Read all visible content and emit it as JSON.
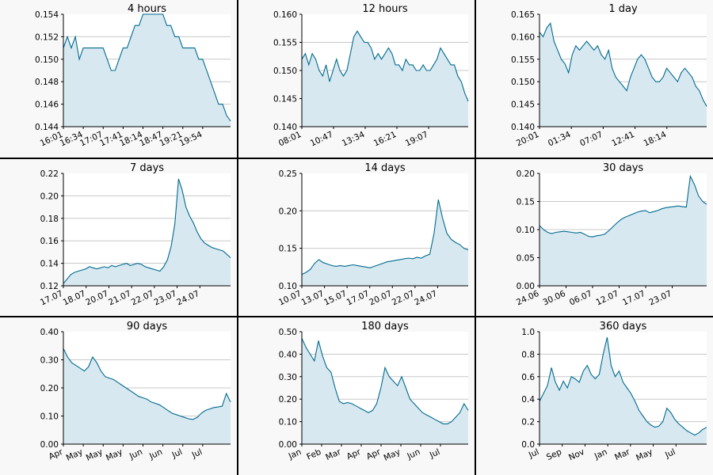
{
  "chart_data": [
    {
      "type": "area",
      "title": "4 hours",
      "ylim": [
        0.144,
        0.154
      ],
      "yticks": [
        "0.154",
        "0.152",
        "0.150",
        "0.148",
        "0.146",
        "0.144"
      ],
      "xticks": [
        "16:01",
        "16:34",
        "17:07",
        "17:41",
        "18:14",
        "18:47",
        "19:21",
        "19:54"
      ],
      "grid": "horizontal",
      "colors": {
        "line": "#006b8f",
        "fill": "#d8e8f0"
      },
      "y": [
        0.151,
        0.152,
        0.151,
        0.152,
        0.15,
        0.151,
        0.151,
        0.151,
        0.151,
        0.151,
        0.151,
        0.15,
        0.149,
        0.149,
        0.15,
        0.151,
        0.151,
        0.152,
        0.153,
        0.153,
        0.154,
        0.154,
        0.154,
        0.154,
        0.154,
        0.154,
        0.153,
        0.153,
        0.152,
        0.152,
        0.151,
        0.151,
        0.151,
        0.151,
        0.15,
        0.15,
        0.149,
        0.148,
        0.147,
        0.146,
        0.146,
        0.145,
        0.1445
      ]
    },
    {
      "type": "area",
      "title": "12 hours",
      "ylim": [
        0.14,
        0.16
      ],
      "yticks": [
        "0.160",
        "0.155",
        "0.150",
        "0.145",
        "0.140"
      ],
      "xticks": [
        "08:01",
        "10:47",
        "13:34",
        "16:21",
        "19:07"
      ],
      "grid": "horizontal",
      "colors": {
        "line": "#006b8f",
        "fill": "#d8e8f0"
      },
      "y": [
        0.152,
        0.153,
        0.151,
        0.153,
        0.152,
        0.15,
        0.149,
        0.151,
        0.148,
        0.15,
        0.152,
        0.15,
        0.149,
        0.15,
        0.153,
        0.156,
        0.157,
        0.156,
        0.155,
        0.155,
        0.154,
        0.152,
        0.153,
        0.152,
        0.153,
        0.154,
        0.153,
        0.151,
        0.151,
        0.15,
        0.152,
        0.151,
        0.151,
        0.15,
        0.15,
        0.151,
        0.15,
        0.15,
        0.151,
        0.152,
        0.154,
        0.153,
        0.152,
        0.151,
        0.151,
        0.149,
        0.148,
        0.146,
        0.1445
      ]
    },
    {
      "type": "area",
      "title": "1 day",
      "ylim": [
        0.14,
        0.165
      ],
      "yticks": [
        "0.165",
        "0.160",
        "0.155",
        "0.150",
        "0.145",
        "0.140"
      ],
      "xticks": [
        "20:01",
        "01:34",
        "07:07",
        "12:41",
        "18:14"
      ],
      "grid": "horizontal",
      "colors": {
        "line": "#006b8f",
        "fill": "#d8e8f0"
      },
      "y": [
        0.161,
        0.16,
        0.162,
        0.163,
        0.159,
        0.157,
        0.155,
        0.154,
        0.152,
        0.156,
        0.158,
        0.157,
        0.158,
        0.159,
        0.158,
        0.157,
        0.158,
        0.156,
        0.155,
        0.157,
        0.153,
        0.151,
        0.15,
        0.149,
        0.148,
        0.151,
        0.153,
        0.155,
        0.156,
        0.155,
        0.153,
        0.151,
        0.15,
        0.15,
        0.151,
        0.153,
        0.152,
        0.151,
        0.15,
        0.152,
        0.153,
        0.152,
        0.151,
        0.149,
        0.148,
        0.146,
        0.1445
      ]
    },
    {
      "type": "area",
      "title": "7 days",
      "ylim": [
        0.12,
        0.22
      ],
      "yticks": [
        "0.22",
        "0.20",
        "0.18",
        "0.16",
        "0.14",
        "0.12"
      ],
      "xticks": [
        "17.07",
        "18.07",
        "20.07",
        "21.07",
        "22.07",
        "23.07",
        "24.07"
      ],
      "grid": "horizontal",
      "colors": {
        "line": "#006b8f",
        "fill": "#d8e8f0"
      },
      "y": [
        0.122,
        0.126,
        0.13,
        0.132,
        0.133,
        0.134,
        0.135,
        0.137,
        0.136,
        0.135,
        0.136,
        0.137,
        0.136,
        0.138,
        0.137,
        0.138,
        0.139,
        0.14,
        0.138,
        0.139,
        0.14,
        0.139,
        0.137,
        0.136,
        0.135,
        0.134,
        0.133,
        0.137,
        0.143,
        0.155,
        0.175,
        0.215,
        0.205,
        0.19,
        0.182,
        0.176,
        0.168,
        0.162,
        0.158,
        0.156,
        0.154,
        0.153,
        0.152,
        0.151,
        0.148,
        0.145
      ]
    },
    {
      "type": "area",
      "title": "14 days",
      "ylim": [
        0.1,
        0.25
      ],
      "yticks": [
        "0.25",
        "0.20",
        "0.15",
        "0.10"
      ],
      "xticks": [
        "10.07",
        "13.07",
        "15.07",
        "17.07",
        "20.07",
        "22.07",
        "24.07"
      ],
      "grid": "horizontal",
      "colors": {
        "line": "#006b8f",
        "fill": "#d8e8f0"
      },
      "y": [
        0.115,
        0.118,
        0.122,
        0.13,
        0.135,
        0.131,
        0.129,
        0.127,
        0.126,
        0.127,
        0.126,
        0.127,
        0.128,
        0.127,
        0.126,
        0.125,
        0.124,
        0.126,
        0.128,
        0.13,
        0.132,
        0.133,
        0.134,
        0.135,
        0.136,
        0.137,
        0.136,
        0.138,
        0.137,
        0.14,
        0.142,
        0.17,
        0.215,
        0.19,
        0.17,
        0.162,
        0.158,
        0.155,
        0.15,
        0.148
      ]
    },
    {
      "type": "area",
      "title": "30 days",
      "ylim": [
        0.0,
        0.2
      ],
      "yticks": [
        "0.20",
        "0.15",
        "0.10",
        "0.05",
        "0.00"
      ],
      "xticks": [
        "24.06",
        "30.06",
        "06.07",
        "12.07",
        "17.07",
        "23.07"
      ],
      "grid": "horizontal",
      "colors": {
        "line": "#006b8f",
        "fill": "#d8e8f0"
      },
      "y": [
        0.107,
        0.1,
        0.095,
        0.093,
        0.095,
        0.096,
        0.097,
        0.096,
        0.095,
        0.094,
        0.095,
        0.092,
        0.088,
        0.087,
        0.089,
        0.09,
        0.092,
        0.098,
        0.105,
        0.112,
        0.118,
        0.122,
        0.125,
        0.128,
        0.131,
        0.133,
        0.134,
        0.13,
        0.132,
        0.134,
        0.137,
        0.139,
        0.14,
        0.141,
        0.142,
        0.141,
        0.14,
        0.195,
        0.18,
        0.16,
        0.15,
        0.145
      ]
    },
    {
      "type": "area",
      "title": "90 days",
      "ylim": [
        0.0,
        0.4
      ],
      "yticks": [
        "0.40",
        "0.30",
        "0.20",
        "0.10",
        "0.00"
      ],
      "xticks": [
        "Apr",
        "May",
        "May",
        "May",
        "Jun",
        "Jun",
        "Jul",
        "Jul"
      ],
      "grid": "horizontal",
      "colors": {
        "line": "#006b8f",
        "fill": "#d8e8f0"
      },
      "y": [
        0.34,
        0.31,
        0.29,
        0.28,
        0.27,
        0.26,
        0.275,
        0.31,
        0.29,
        0.26,
        0.24,
        0.235,
        0.23,
        0.22,
        0.21,
        0.2,
        0.19,
        0.18,
        0.17,
        0.165,
        0.16,
        0.15,
        0.145,
        0.14,
        0.13,
        0.12,
        0.11,
        0.105,
        0.1,
        0.095,
        0.09,
        0.088,
        0.095,
        0.11,
        0.12,
        0.125,
        0.13,
        0.132,
        0.135,
        0.18,
        0.15
      ]
    },
    {
      "type": "area",
      "title": "180 days",
      "ylim": [
        0.0,
        0.5
      ],
      "yticks": [
        "0.50",
        "0.40",
        "0.30",
        "0.20",
        "0.10",
        "0.00"
      ],
      "xticks": [
        "Jan",
        "Feb",
        "Mar",
        "Apr",
        "Apr",
        "May",
        "Jun",
        "Jul"
      ],
      "grid": "horizontal",
      "colors": {
        "line": "#006b8f",
        "fill": "#d8e8f0"
      },
      "y": [
        0.47,
        0.43,
        0.4,
        0.37,
        0.46,
        0.39,
        0.34,
        0.32,
        0.25,
        0.19,
        0.18,
        0.185,
        0.18,
        0.17,
        0.16,
        0.15,
        0.14,
        0.15,
        0.18,
        0.25,
        0.34,
        0.3,
        0.28,
        0.26,
        0.3,
        0.25,
        0.2,
        0.18,
        0.16,
        0.14,
        0.13,
        0.12,
        0.11,
        0.1,
        0.09,
        0.09,
        0.1,
        0.12,
        0.14,
        0.18,
        0.15
      ]
    },
    {
      "type": "area",
      "title": "360 days",
      "ylim": [
        0.0,
        1.0
      ],
      "yticks": [
        "1.0",
        "0.8",
        "0.6",
        "0.4",
        "0.2",
        "0.0"
      ],
      "xticks": [
        "Jul",
        "Sep",
        "Nov",
        "Jan",
        "Mar",
        "May",
        "Jul"
      ],
      "grid": "horizontal",
      "colors": {
        "line": "#006b8f",
        "fill": "#d8e8f0"
      },
      "y": [
        0.38,
        0.45,
        0.52,
        0.68,
        0.55,
        0.48,
        0.56,
        0.5,
        0.6,
        0.58,
        0.55,
        0.65,
        0.7,
        0.62,
        0.58,
        0.62,
        0.8,
        0.95,
        0.7,
        0.6,
        0.65,
        0.55,
        0.5,
        0.45,
        0.38,
        0.3,
        0.25,
        0.2,
        0.17,
        0.15,
        0.16,
        0.2,
        0.32,
        0.28,
        0.22,
        0.18,
        0.15,
        0.12,
        0.1,
        0.08,
        0.1,
        0.13,
        0.15
      ]
    }
  ]
}
